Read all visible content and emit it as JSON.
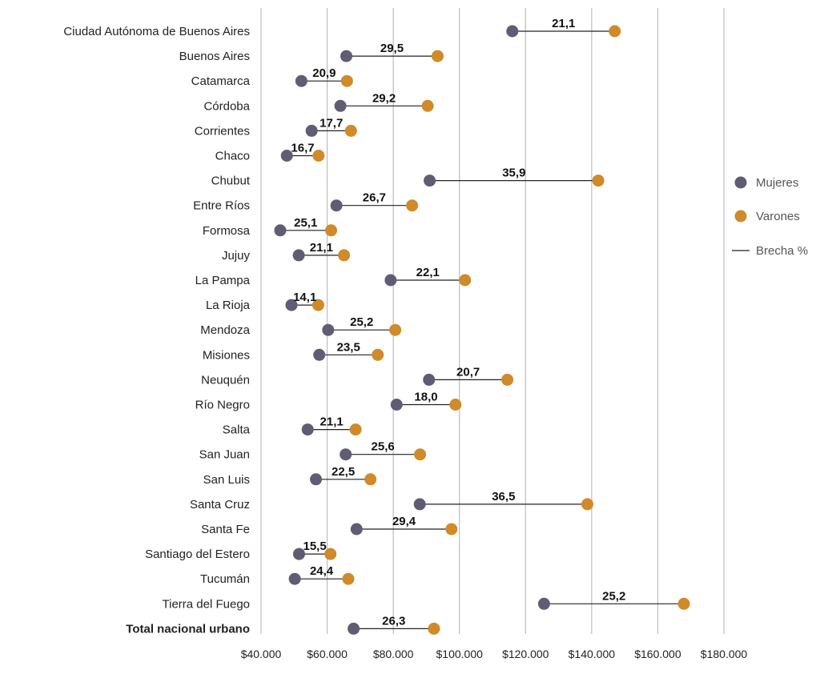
{
  "chart_data": {
    "type": "dumbbell",
    "categories": [
      "Ciudad Autónoma de Buenos Aires",
      "Buenos Aires",
      "Catamarca",
      "Córdoba",
      "Corrientes",
      "Chaco",
      "Chubut",
      "Entre Ríos",
      "Formosa",
      "Jujuy",
      "La Pampa",
      "La Rioja",
      "Mendoza",
      "Misiones",
      "Neuquén",
      "Río Negro",
      "Salta",
      "San Juan",
      "San Luis",
      "Santa Cruz",
      "Santa Fe",
      "Santiago del Estero",
      "Tucumán",
      "Tierra del Fuego",
      "Total nacional urbano"
    ],
    "bold_categories": [
      "Total nacional urbano"
    ],
    "series": [
      {
        "name": "Mujeres",
        "color": "#5f5d73",
        "values": [
          116000,
          65800,
          52200,
          64000,
          55300,
          47800,
          91000,
          62800,
          45800,
          51400,
          79200,
          49200,
          60300,
          57600,
          90800,
          81000,
          54100,
          65600,
          56600,
          88000,
          68900,
          51500,
          50200,
          125600,
          68000
        ]
      },
      {
        "name": "Varones",
        "color": "#d08a2a",
        "values": [
          147000,
          93400,
          66000,
          90400,
          67200,
          57400,
          142000,
          85700,
          61200,
          65100,
          101700,
          57300,
          80600,
          75300,
          114500,
          98800,
          68600,
          88100,
          73100,
          138700,
          97600,
          61000,
          66400,
          167900,
          92300
        ]
      },
      {
        "name": "Brecha %",
        "color": "#222222",
        "values": [
          "21,1",
          "29,5",
          "20,9",
          "29,2",
          "17,7",
          "16,7",
          "35,9",
          "26,7",
          "25,1",
          "21,1",
          "22,1",
          "14,1",
          "25,2",
          "23,5",
          "20,7",
          "18,0",
          "21,1",
          "25,6",
          "22,5",
          "36,5",
          "29,4",
          "15,5",
          "24,4",
          "25,2",
          "26,3"
        ]
      }
    ],
    "x_ticks": [
      40000,
      60000,
      80000,
      100000,
      120000,
      140000,
      160000,
      180000
    ],
    "x_tick_labels": [
      "$40.000",
      "$60.000",
      "$80.000",
      "$100.000",
      "$120.000",
      "$140.000",
      "$160.000",
      "$180.000"
    ],
    "xlim": [
      40000,
      180000
    ],
    "grid": "vertical",
    "legend_position": "right"
  }
}
